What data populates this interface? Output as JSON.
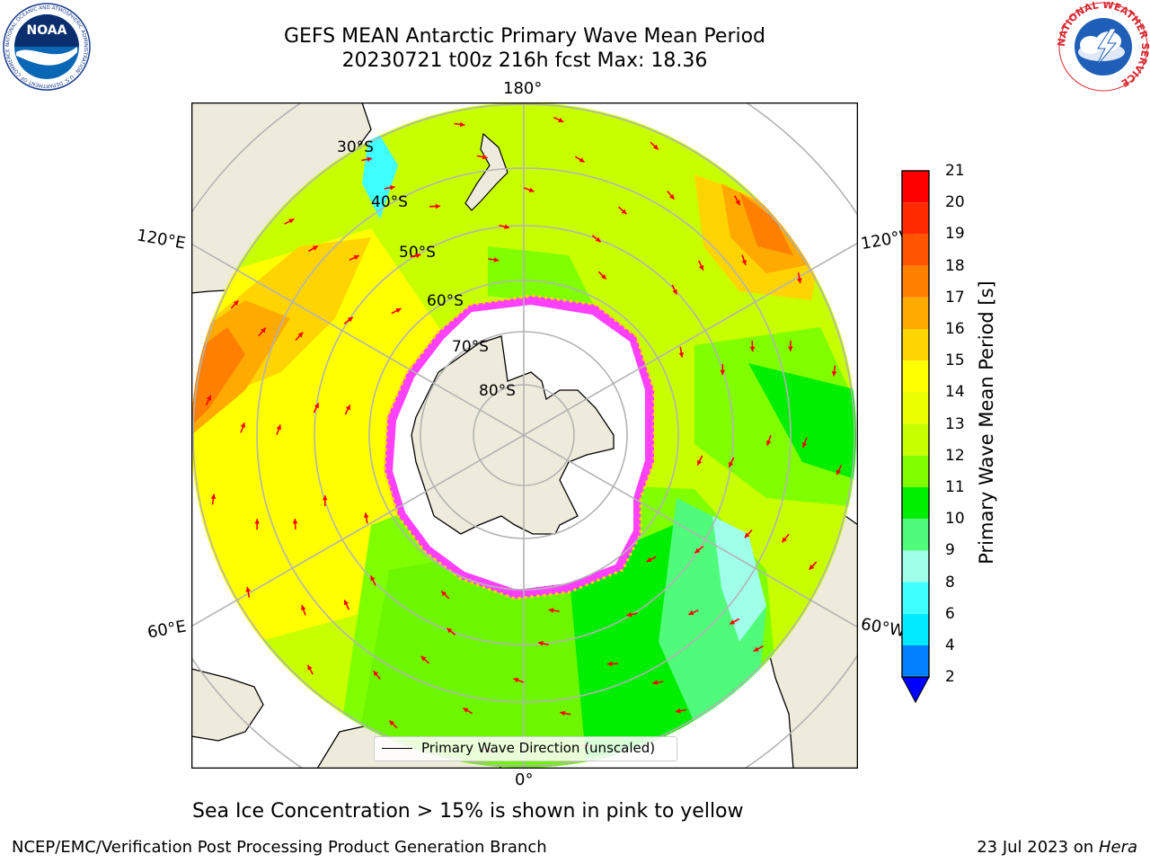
{
  "header": {
    "title_line1": "GEFS MEAN Antarctic Primary Wave Mean Period",
    "title_line2": "20230721 t00z 216h fcst   Max: 18.36"
  },
  "logos": {
    "left_icon": "noaa-logo-icon",
    "left_text": "NOAA",
    "left_ring_text": "NATIONAL OCEANIC AND ATMOSPHERIC ADMINISTRATION · U.S. DEPARTMENT OF COMMERCE",
    "right_icon": "nws-logo-icon",
    "right_ring_text": "NATIONAL WEATHER SERVICE"
  },
  "map": {
    "projection": "south-polar-stereographic",
    "lon_labels": {
      "top": "180°",
      "bottom": "0°",
      "left_upper": "120°E",
      "left_lower": "60°E",
      "right_upper": "120°W",
      "right_lower": "60°W"
    },
    "lat_labels": [
      "30°S",
      "40°S",
      "50°S",
      "60°S",
      "70°S",
      "80°S"
    ],
    "colors": {
      "land": "#efebdc",
      "ice_free_ocean_missing": "#ffffff",
      "sea_ice": "#ff40ff",
      "vector": "#ff0000",
      "gridline": "#b3b3b3"
    }
  },
  "legend": {
    "label": "Primary Wave Direction (unscaled)"
  },
  "colorbar": {
    "label": "Primary Wave Mean Period [s]",
    "ticks": [
      "21",
      "20",
      "19",
      "18",
      "17",
      "16",
      "15",
      "14",
      "13",
      "12",
      "11",
      "10",
      "9",
      "8",
      "6",
      "4",
      "2"
    ],
    "colors_top_to_bottom": [
      "#ff0000",
      "#ff2a00",
      "#ff5500",
      "#ff7f00",
      "#ffaa00",
      "#ffd400",
      "#ffff00",
      "#eaff00",
      "#c8ff00",
      "#80ff00",
      "#00ee00",
      "#50fa7b",
      "#9fffe8",
      "#40ffff",
      "#00eaff",
      "#0080ff"
    ],
    "extend_color": "#0000ff"
  },
  "subtitle": "Sea Ice Concentration > 15% is shown in pink to yellow",
  "footer": {
    "left": "NCEP/EMC/Verification Post Processing Product Generation Branch",
    "right_date": "23 Jul 2023 on",
    "right_host": "Hera"
  }
}
